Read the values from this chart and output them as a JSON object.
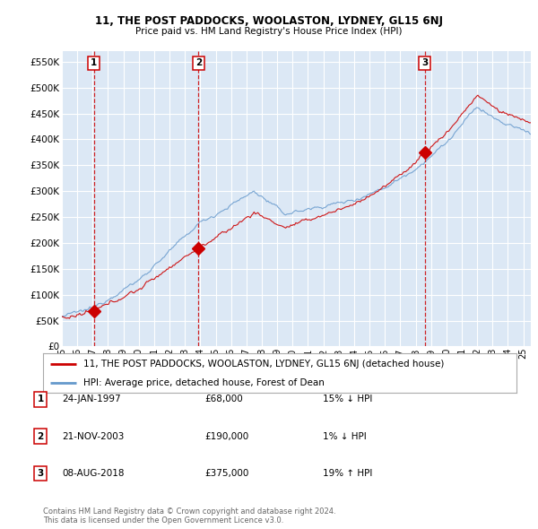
{
  "title": "11, THE POST PADDOCKS, WOOLASTON, LYDNEY, GL15 6NJ",
  "subtitle": "Price paid vs. HM Land Registry's House Price Index (HPI)",
  "bg_color": "#dce8f5",
  "grid_color": "#ffffff",
  "sale_dates_num": [
    1997.07,
    2003.89,
    2018.6
  ],
  "sale_prices": [
    68000,
    190000,
    375000
  ],
  "sale_labels": [
    "1",
    "2",
    "3"
  ],
  "legend_property": "11, THE POST PADDOCKS, WOOLASTON, LYDNEY, GL15 6NJ (detached house)",
  "legend_hpi": "HPI: Average price, detached house, Forest of Dean",
  "table_rows": [
    [
      "1",
      "24-JAN-1997",
      "£68,000",
      "15% ↓ HPI"
    ],
    [
      "2",
      "21-NOV-2003",
      "£190,000",
      "1% ↓ HPI"
    ],
    [
      "3",
      "08-AUG-2018",
      "£375,000",
      "19% ↑ HPI"
    ]
  ],
  "footer": "Contains HM Land Registry data © Crown copyright and database right 2024.\nThis data is licensed under the Open Government Licence v3.0.",
  "ylim": [
    0,
    570000
  ],
  "yticks": [
    0,
    50000,
    100000,
    150000,
    200000,
    250000,
    300000,
    350000,
    400000,
    450000,
    500000,
    550000
  ],
  "ytick_labels": [
    "£0",
    "£50K",
    "£100K",
    "£150K",
    "£200K",
    "£250K",
    "£300K",
    "£350K",
    "£400K",
    "£450K",
    "£500K",
    "£550K"
  ],
  "xlim_start": 1995.0,
  "xlim_end": 2025.5,
  "hpi_color": "#6699cc",
  "sale_line_color": "#cc0000",
  "sale_dot_color": "#cc0000",
  "vline_color": "#cc0000"
}
